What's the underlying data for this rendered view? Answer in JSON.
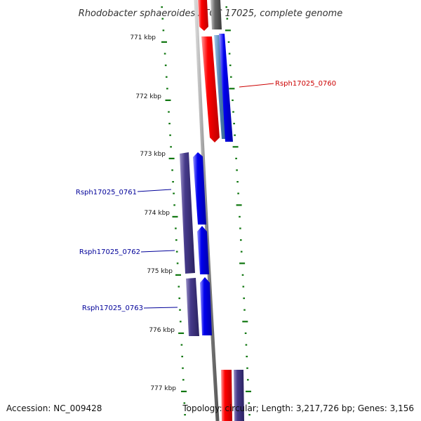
{
  "title": "Rhodobacter sphaeroides ATCC 17025, complete genome",
  "accession": "Accession: NC_009428",
  "topology": "Topology: circular; Length: 3,217,726 bp; Genes: 3,156",
  "ticks": [
    "771 kbp",
    "772 kbp",
    "773 kbp",
    "774 kbp",
    "775 kbp",
    "776 kbp",
    "777 kbp"
  ],
  "gene_labels": [
    {
      "text": "Rsph17025_0760",
      "color": "#cc0000"
    },
    {
      "text": "Rsph17025_0761",
      "color": "#000099"
    },
    {
      "text": "Rsph17025_0762",
      "color": "#000099"
    },
    {
      "text": "Rsph17025_0763",
      "color": "#000099"
    }
  ],
  "colors": {
    "tick_green": "#117711",
    "backbone": "#888888",
    "red": "#ee0000",
    "blue": "#0000ee",
    "navy": "#443388",
    "steel": "#4477aa",
    "grey": "#666666"
  }
}
